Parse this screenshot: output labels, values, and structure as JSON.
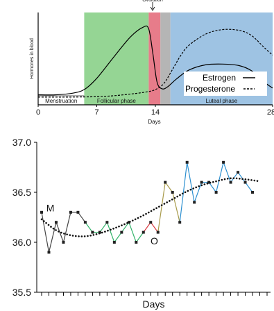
{
  "chart_data": [
    {
      "type": "line",
      "title": "",
      "annotation": "Ovulation",
      "xlabel": "Days",
      "ylabel": "Hormones in blood",
      "xlim": [
        0,
        28
      ],
      "x_ticks": [
        "0",
        "7",
        "14",
        "28"
      ],
      "x_tick_values": [
        0,
        7,
        14,
        28
      ],
      "phases": [
        {
          "name": "Menstruation",
          "start": 0,
          "end": 5.5,
          "color": "#ffffff"
        },
        {
          "name": "Follicular phase",
          "start": 5.5,
          "end": 13.2,
          "color": "#95d594"
        },
        {
          "name": "",
          "start": 13.2,
          "end": 14.6,
          "color": "#e77c8a"
        },
        {
          "name": "",
          "start": 14.6,
          "end": 15.8,
          "color": "#b5b5b5"
        },
        {
          "name": "Luteal phase",
          "start": 15.8,
          "end": 28,
          "color": "#9ec3e3"
        }
      ],
      "series": [
        {
          "name": "Estrogen",
          "style": "solid",
          "x": [
            0,
            2,
            4,
            5.5,
            7,
            9,
            11,
            12.5,
            13.2,
            13.7,
            14.2,
            14.8,
            15.5,
            16.5,
            18,
            20,
            22,
            24,
            25.5,
            27,
            28
          ],
          "y": [
            0.05,
            0.05,
            0.07,
            0.12,
            0.27,
            0.55,
            0.82,
            0.95,
            0.93,
            0.6,
            0.22,
            0.13,
            0.16,
            0.26,
            0.38,
            0.45,
            0.46,
            0.44,
            0.37,
            0.22,
            0.14
          ]
        },
        {
          "name": "Progesterone",
          "style": "dashed",
          "x": [
            0,
            4,
            8,
            11,
            13,
            14,
            15,
            16,
            17,
            18,
            20,
            22,
            24,
            25.5,
            27,
            28
          ],
          "y": [
            0.02,
            0.02,
            0.03,
            0.06,
            0.09,
            0.12,
            0.2,
            0.38,
            0.57,
            0.71,
            0.86,
            0.92,
            0.91,
            0.84,
            0.68,
            0.58
          ]
        }
      ],
      "legend": {
        "placement": "bottom-right",
        "entries": [
          "Estrogen",
          "Progesterone"
        ]
      }
    },
    {
      "type": "line",
      "title": "",
      "xlabel": "Days",
      "ylabel": "",
      "ylim": [
        35.5,
        37.0
      ],
      "y_ticks": [
        "37.0",
        "36.5",
        "36.0",
        "35.5"
      ],
      "y_tick_values": [
        37.0,
        36.5,
        36.0,
        35.5
      ],
      "x_tick_count": 32,
      "series": [
        {
          "name": "",
          "style": "segmented",
          "x": [
            1,
            2,
            3,
            4,
            5,
            6,
            7,
            8,
            9,
            10,
            11,
            12,
            13,
            14,
            15,
            16,
            17,
            18,
            19,
            20,
            21,
            22,
            23,
            24,
            25,
            26,
            27,
            28,
            29,
            30,
            31
          ],
          "y": [
            36.3,
            35.9,
            36.2,
            36.0,
            36.3,
            36.3,
            36.2,
            36.1,
            36.1,
            36.2,
            36.0,
            36.1,
            36.2,
            36.0,
            36.1,
            36.2,
            36.1,
            36.6,
            36.5,
            36.2,
            36.8,
            36.4,
            36.6,
            36.6,
            36.5,
            36.8,
            36.6,
            36.7,
            36.6,
            36.5,
            null
          ],
          "segment_colors": [
            "#444444",
            "#444444",
            "#444444",
            "#444444",
            "#444444",
            "#444444",
            "#32b36a",
            "#32b36a",
            "#32b36a",
            "#32b36a",
            "#32b36a",
            "#32b36a",
            "#32b36a",
            "#32b36a",
            "#d9363e",
            "#d9363e",
            "#a89a4a",
            "#a89a4a",
            "#a89a4a",
            "#2b8fd0",
            "#2b8fd0",
            "#2b8fd0",
            "#2b8fd0",
            "#2b8fd0",
            "#2b8fd0",
            "#2b8fd0",
            "#2b8fd0",
            "#2b8fd0",
            "#2b8fd0"
          ]
        },
        {
          "name": "",
          "style": "dotted-trend",
          "x": [
            1,
            3,
            5,
            7,
            9,
            11,
            13,
            15,
            17,
            19,
            21,
            23,
            25,
            27,
            29,
            31
          ],
          "y": [
            36.23,
            36.12,
            36.07,
            36.06,
            36.09,
            36.14,
            36.2,
            36.27,
            36.35,
            36.43,
            36.51,
            36.57,
            36.61,
            36.64,
            36.63,
            36.61
          ]
        }
      ],
      "annotations": [
        {
          "text": "M",
          "x": 2.2,
          "y": 36.31
        },
        {
          "text": "O",
          "x": 16.5,
          "y": 35.98
        }
      ]
    }
  ]
}
